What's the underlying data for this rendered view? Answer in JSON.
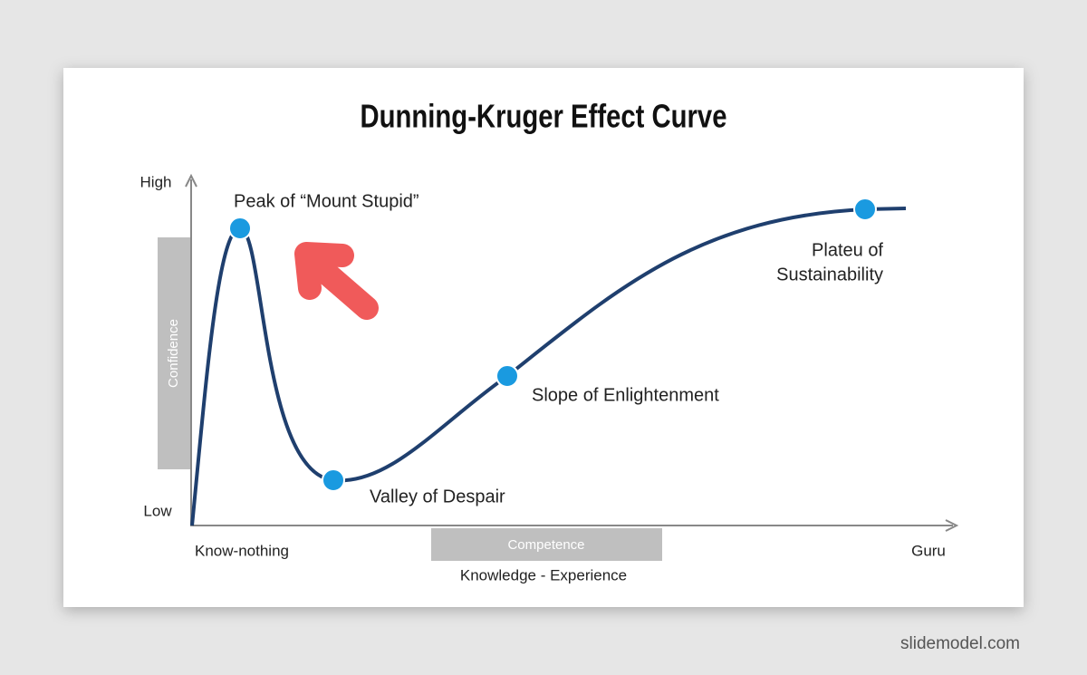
{
  "title": "Dunning-Kruger Effect Curve",
  "y_axis": {
    "high": "High",
    "low": "Low",
    "label": "Confidence"
  },
  "x_axis": {
    "start": "Know-nothing",
    "end": "Guru",
    "band": "Competence",
    "label": "Knowledge - Experience"
  },
  "points": [
    {
      "label": "Peak of “Mount Stupid”"
    },
    {
      "label": "Valley of Despair"
    },
    {
      "label": "Slope of Enlightenment"
    },
    {
      "label_lines": [
        "Plateu of",
        "Sustainability"
      ]
    }
  ],
  "footer": "slidemodel.com"
}
